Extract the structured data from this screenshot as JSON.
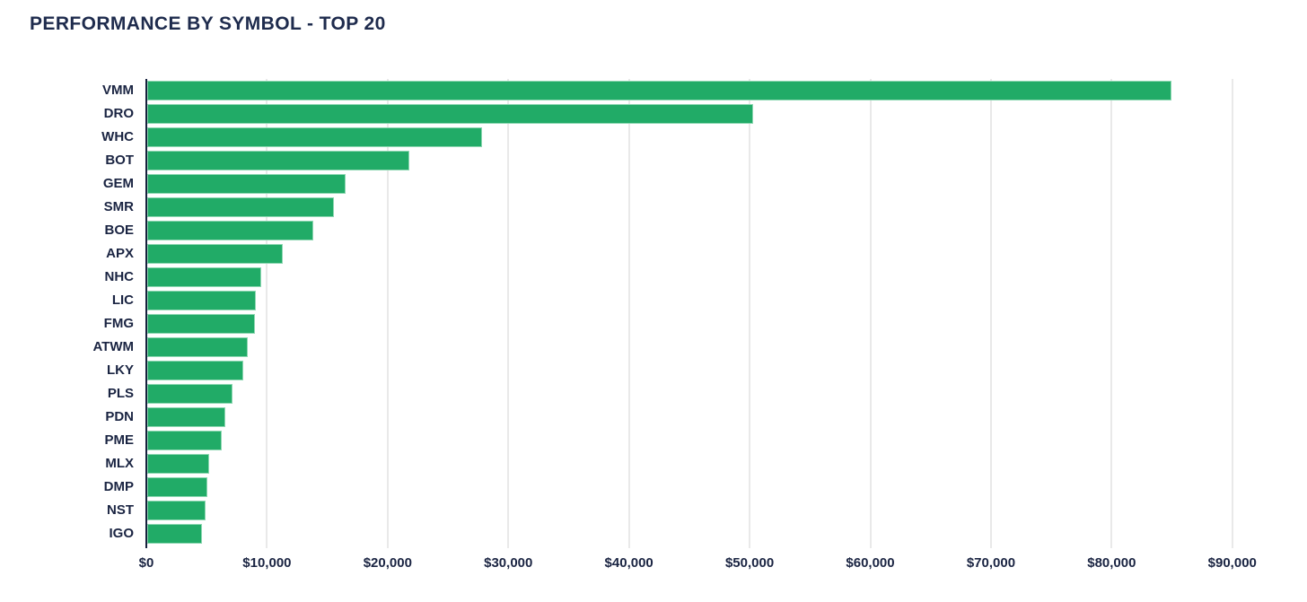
{
  "page": {
    "background_color": "#ffffff"
  },
  "chart_data": {
    "type": "bar",
    "orientation": "horizontal",
    "title": "PERFORMANCE BY SYMBOL - TOP 20",
    "categories": [
      "VMM",
      "DRO",
      "WHC",
      "BOT",
      "GEM",
      "SMR",
      "BOE",
      "APX",
      "NHC",
      "LIC",
      "FMG",
      "ATWM",
      "LKY",
      "PLS",
      "PDN",
      "PME",
      "MLX",
      "DMP",
      "NST",
      "IGO"
    ],
    "values": [
      84700,
      50100,
      27600,
      21600,
      16300,
      15350,
      13650,
      11100,
      9300,
      8870,
      8790,
      8200,
      7800,
      6900,
      6300,
      6000,
      4990,
      4840,
      4690,
      4390
    ],
    "xlabel": "",
    "ylabel": "",
    "xlim": [
      0,
      95000
    ],
    "x_ticks": [
      {
        "value": 0,
        "label": "$0"
      },
      {
        "value": 10000,
        "label": "$10,000"
      },
      {
        "value": 20000,
        "label": "$20,000"
      },
      {
        "value": 30000,
        "label": "$30,000"
      },
      {
        "value": 40000,
        "label": "$40,000"
      },
      {
        "value": 50000,
        "label": "$50,000"
      },
      {
        "value": 60000,
        "label": "$60,000"
      },
      {
        "value": 70000,
        "label": "$70,000"
      },
      {
        "value": 80000,
        "label": "$80,000"
      },
      {
        "value": 90000,
        "label": "$90,000"
      }
    ],
    "grid": true,
    "legend": false,
    "colors": {
      "bar_fill": "#21ab67",
      "bar_border": "#8ed7b2",
      "title_text": "#1e2b4d",
      "axis_text": "#1a2442",
      "axis_line": "#16213d",
      "gridline": "#e9e9e9"
    }
  }
}
